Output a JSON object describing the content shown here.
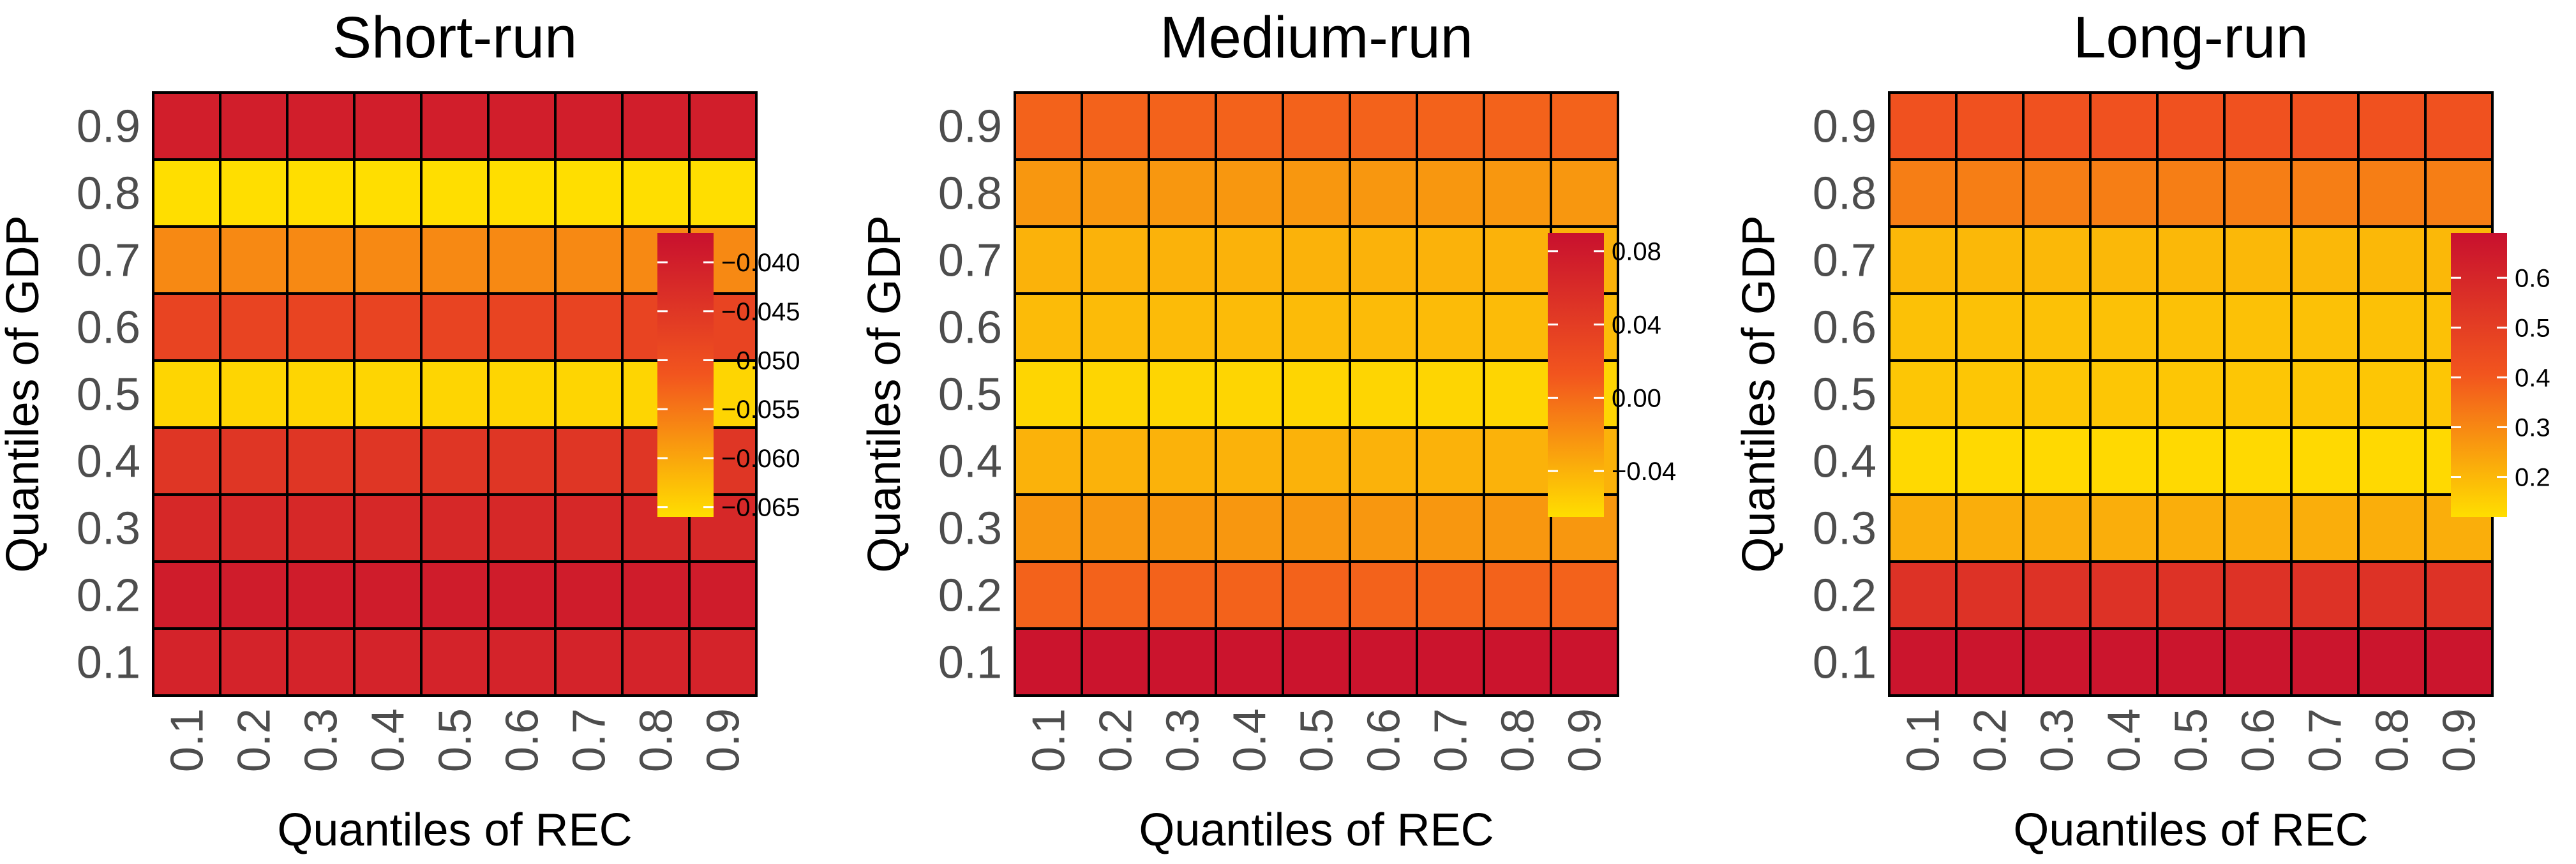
{
  "palette": {
    "low": "#FFDE00",
    "mid": "#F2551E",
    "high": "#C8102E"
  },
  "chart_data": [
    {
      "type": "heatmap",
      "title": "Short-run",
      "xlabel": "Quantiles of REC",
      "ylabel": "Quantiles of GDP",
      "x": [
        "0.1",
        "0.2",
        "0.3",
        "0.4",
        "0.5",
        "0.6",
        "0.7",
        "0.8",
        "0.9"
      ],
      "y": [
        "0.1",
        "0.2",
        "0.3",
        "0.4",
        "0.5",
        "0.6",
        "0.7",
        "0.8",
        "0.9"
      ],
      "row_values": [
        -0.041,
        -0.0395,
        -0.042,
        -0.045,
        -0.065,
        -0.048,
        -0.057,
        -0.066,
        -0.04
      ],
      "colorbar": {
        "min": -0.066,
        "max": -0.037,
        "ticks": [
          -0.04,
          -0.045,
          -0.05,
          -0.055,
          -0.06,
          -0.065
        ],
        "tick_labels": [
          "−0.040",
          "−0.045",
          "−0.050",
          "−0.055",
          "−0.060",
          "−0.065"
        ]
      }
    },
    {
      "type": "heatmap",
      "title": "Medium-run",
      "xlabel": "Quantiles of REC",
      "ylabel": "Quantiles of GDP",
      "x": [
        "0.1",
        "0.2",
        "0.3",
        "0.4",
        "0.5",
        "0.6",
        "0.7",
        "0.8",
        "0.9"
      ],
      "y": [
        "0.1",
        "0.2",
        "0.3",
        "0.4",
        "0.5",
        "0.6",
        "0.7",
        "0.8",
        "0.9"
      ],
      "row_values": [
        0.085,
        0.005,
        -0.025,
        -0.04,
        -0.06,
        -0.045,
        -0.04,
        -0.025,
        0.005
      ],
      "colorbar": {
        "min": -0.065,
        "max": 0.09,
        "ticks": [
          0.08,
          0.04,
          0.0,
          -0.04
        ],
        "tick_labels": [
          "0.08",
          "0.04",
          "0.00",
          "−0.04"
        ]
      }
    },
    {
      "type": "heatmap",
      "title": "Long-run",
      "xlabel": "Quantiles of REC",
      "ylabel": "Quantiles of GDP",
      "x": [
        "0.1",
        "0.2",
        "0.3",
        "0.4",
        "0.5",
        "0.6",
        "0.7",
        "0.8",
        "0.9"
      ],
      "y": [
        "0.1",
        "0.2",
        "0.3",
        "0.4",
        "0.5",
        "0.6",
        "0.7",
        "0.8",
        "0.9"
      ],
      "row_values": [
        0.67,
        0.55,
        0.22,
        0.13,
        0.17,
        0.18,
        0.2,
        0.32,
        0.42
      ],
      "colorbar": {
        "min": 0.12,
        "max": 0.69,
        "ticks": [
          0.6,
          0.5,
          0.4,
          0.3,
          0.2
        ],
        "tick_labels": [
          "0.6",
          "0.5",
          "0.4",
          "0.3",
          "0.2"
        ]
      }
    }
  ]
}
